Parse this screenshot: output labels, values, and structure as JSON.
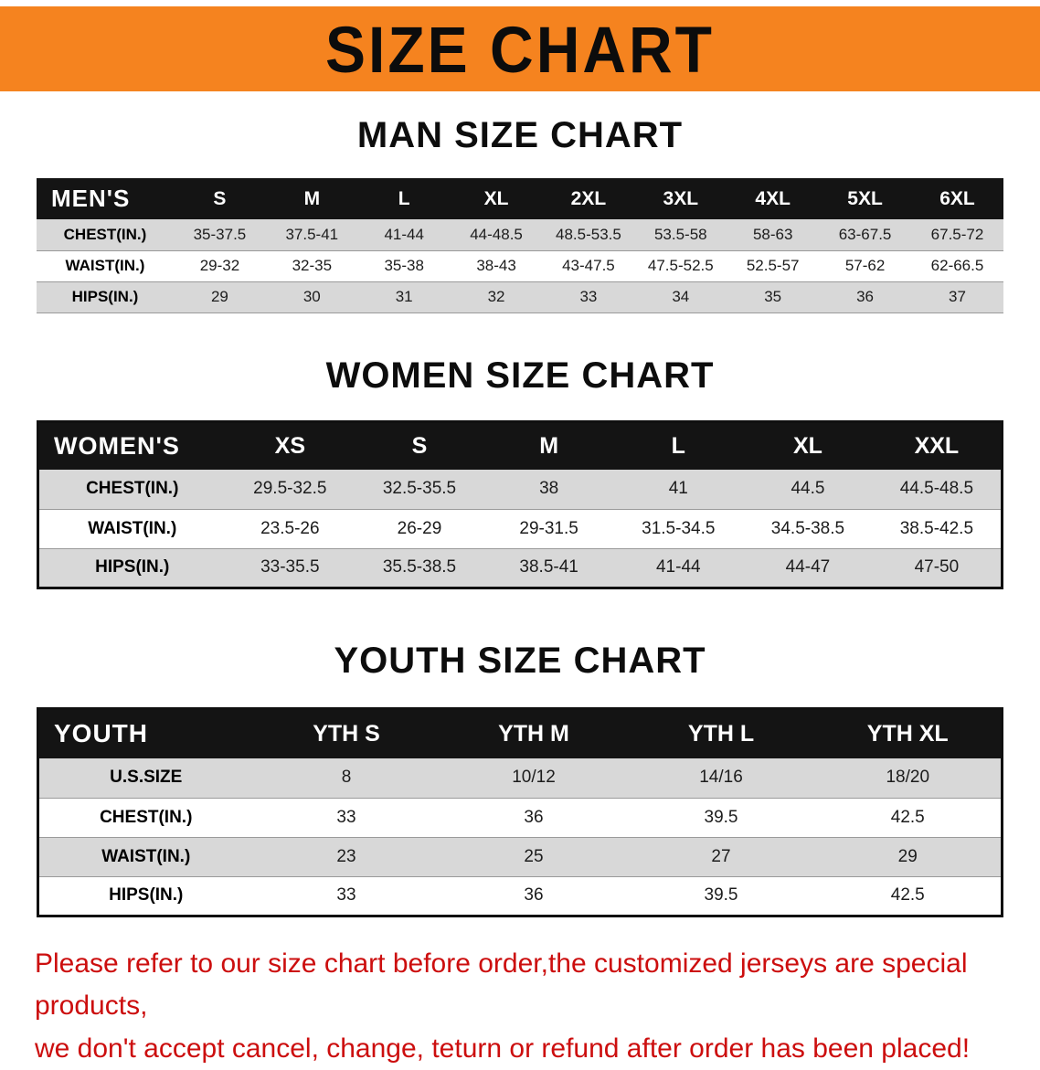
{
  "banner": {
    "title": "SIZE CHART",
    "bg_color": "#f5831f"
  },
  "colors": {
    "header_bg": "#141414",
    "stripe_row": "#d8d8d8",
    "disclaimer_text": "#cc0e0e"
  },
  "sections": [
    {
      "heading": "MAN SIZE CHART",
      "table": {
        "label": "MEN'S",
        "columns": [
          "S",
          "M",
          "L",
          "XL",
          "2XL",
          "3XL",
          "4XL",
          "5XL",
          "6XL"
        ],
        "rows": [
          {
            "label": "CHEST(IN.)",
            "values": [
              "35-37.5",
              "37.5-41",
              "41-44",
              "44-48.5",
              "48.5-53.5",
              "53.5-58",
              "58-63",
              "63-67.5",
              "67.5-72"
            ]
          },
          {
            "label": "WAIST(IN.)",
            "values": [
              "29-32",
              "32-35",
              "35-38",
              "38-43",
              "43-47.5",
              "47.5-52.5",
              "52.5-57",
              "57-62",
              "62-66.5"
            ]
          },
          {
            "label": "HIPS(IN.)",
            "values": [
              "29",
              "30",
              "31",
              "32",
              "33",
              "34",
              "35",
              "36",
              "37"
            ]
          }
        ]
      }
    },
    {
      "heading": "WOMEN SIZE CHART",
      "table": {
        "label": "WOMEN'S",
        "columns": [
          "XS",
          "S",
          "M",
          "L",
          "XL",
          "XXL"
        ],
        "rows": [
          {
            "label": "CHEST(IN.)",
            "values": [
              "29.5-32.5",
              "32.5-35.5",
              "38",
              "41",
              "44.5",
              "44.5-48.5"
            ]
          },
          {
            "label": "WAIST(IN.)",
            "values": [
              "23.5-26",
              "26-29",
              "29-31.5",
              "31.5-34.5",
              "34.5-38.5",
              "38.5-42.5"
            ]
          },
          {
            "label": "HIPS(IN.)",
            "values": [
              "33-35.5",
              "35.5-38.5",
              "38.5-41",
              "41-44",
              "44-47",
              "47-50"
            ]
          }
        ]
      }
    },
    {
      "heading": "YOUTH SIZE CHART",
      "table": {
        "label": "YOUTH",
        "columns": [
          "YTH S",
          "YTH M",
          "YTH L",
          "YTH XL"
        ],
        "rows": [
          {
            "label": "U.S.SIZE",
            "values": [
              "8",
              "10/12",
              "14/16",
              "18/20"
            ]
          },
          {
            "label": "CHEST(IN.)",
            "values": [
              "33",
              "36",
              "39.5",
              "42.5"
            ]
          },
          {
            "label": "WAIST(IN.)",
            "values": [
              "23",
              "25",
              "27",
              "29"
            ]
          },
          {
            "label": "HIPS(IN.)",
            "values": [
              "33",
              "36",
              "39.5",
              "42.5"
            ]
          }
        ]
      }
    }
  ],
  "disclaimer": {
    "line1": "Please refer to our size chart before order,the customized jerseys are special products,",
    "line2": "we don't accept cancel, change, teturn or refund after order has been placed!"
  }
}
